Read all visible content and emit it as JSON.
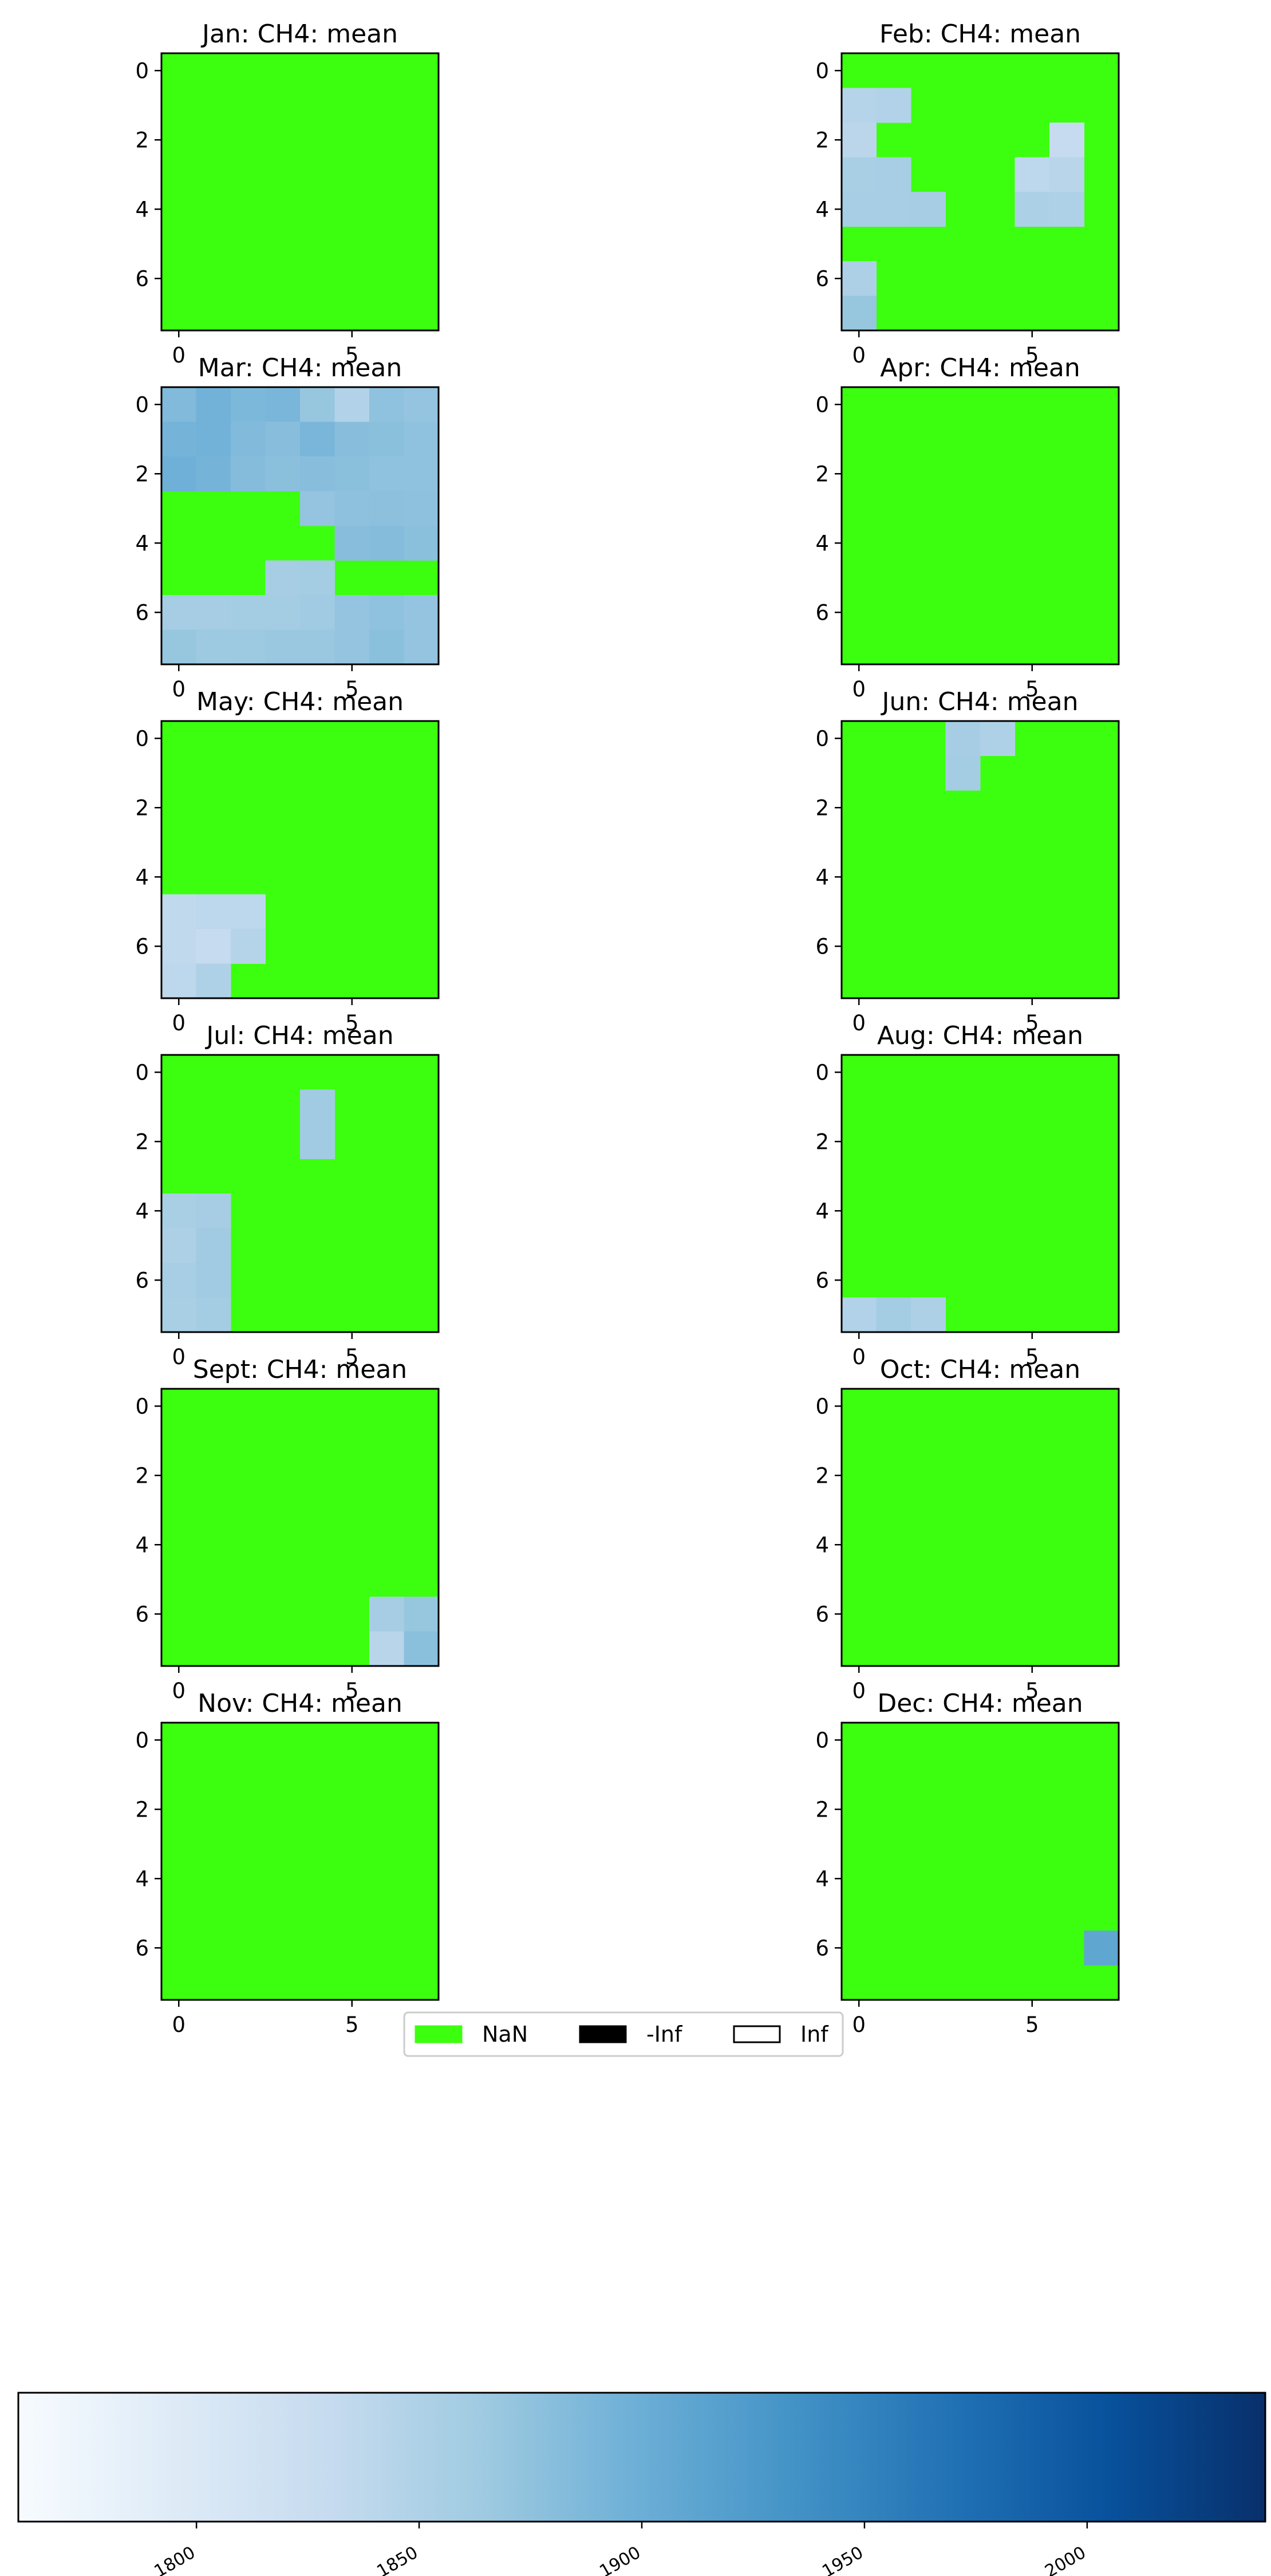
{
  "chart_data": {
    "type": "heatmap",
    "grid_size": 8,
    "missing_color": "#3cff0f",
    "colormap": "Blues",
    "colorbar": {
      "vmin": 1760,
      "vmax": 2040,
      "ticks": [
        1800,
        1850,
        1900,
        1950,
        2000
      ],
      "stops": [
        "#f7fbff",
        "#deebf7",
        "#c6dbef",
        "#9ecae1",
        "#6baed6",
        "#4292c6",
        "#2171b5",
        "#08519c",
        "#08306b"
      ]
    },
    "legend": {
      "placement": "lower-center",
      "entries": [
        {
          "label": "NaN",
          "color": "#3cff0f",
          "edge": "#3cff0f"
        },
        {
          "label": "-Inf",
          "color": "#000000",
          "edge": "#000000"
        },
        {
          "label": "Inf",
          "color": "#ffffff",
          "edge": "#000000"
        }
      ]
    },
    "y_ticks": [
      0,
      2,
      4,
      6
    ],
    "x_ticks": [
      0,
      5
    ],
    "panels": [
      {
        "title": "Jan: CH4: mean",
        "cells": []
      },
      {
        "title": "Feb: CH4: mean",
        "cells": [
          [
            1,
            0,
            1845
          ],
          [
            1,
            1,
            1848
          ],
          [
            2,
            0,
            1840
          ],
          [
            3,
            0,
            1855
          ],
          [
            3,
            1,
            1856
          ],
          [
            4,
            0,
            1857
          ],
          [
            4,
            1,
            1856
          ],
          [
            4,
            2,
            1858
          ],
          [
            6,
            0,
            1852
          ],
          [
            7,
            0,
            1870
          ],
          [
            2,
            6,
            1830
          ],
          [
            3,
            5,
            1838
          ],
          [
            3,
            6,
            1842
          ],
          [
            4,
            5,
            1853
          ],
          [
            4,
            6,
            1850
          ]
        ]
      },
      {
        "title": "Mar: CH4: mean",
        "cells": [
          [
            0,
            0,
            1885
          ],
          [
            0,
            1,
            1895
          ],
          [
            0,
            2,
            1888
          ],
          [
            0,
            3,
            1890
          ],
          [
            0,
            4,
            1870
          ],
          [
            0,
            5,
            1848
          ],
          [
            0,
            6,
            1875
          ],
          [
            0,
            7,
            1872
          ],
          [
            1,
            0,
            1893
          ],
          [
            1,
            1,
            1895
          ],
          [
            1,
            2,
            1885
          ],
          [
            1,
            3,
            1880
          ],
          [
            1,
            4,
            1890
          ],
          [
            1,
            5,
            1880
          ],
          [
            1,
            6,
            1878
          ],
          [
            1,
            7,
            1875
          ],
          [
            2,
            0,
            1898
          ],
          [
            2,
            1,
            1893
          ],
          [
            2,
            2,
            1882
          ],
          [
            2,
            3,
            1878
          ],
          [
            2,
            4,
            1880
          ],
          [
            2,
            5,
            1878
          ],
          [
            2,
            6,
            1875
          ],
          [
            2,
            7,
            1875
          ],
          [
            3,
            4,
            1872
          ],
          [
            3,
            5,
            1876
          ],
          [
            3,
            6,
            1877
          ],
          [
            3,
            7,
            1876
          ],
          [
            4,
            5,
            1880
          ],
          [
            4,
            6,
            1882
          ],
          [
            4,
            7,
            1878
          ],
          [
            5,
            3,
            1858
          ],
          [
            5,
            4,
            1860
          ],
          [
            6,
            0,
            1858
          ],
          [
            6,
            1,
            1858
          ],
          [
            6,
            2,
            1860
          ],
          [
            6,
            3,
            1860
          ],
          [
            6,
            4,
            1862
          ],
          [
            6,
            5,
            1872
          ],
          [
            6,
            6,
            1875
          ],
          [
            6,
            7,
            1872
          ],
          [
            7,
            0,
            1870
          ],
          [
            7,
            1,
            1865
          ],
          [
            7,
            2,
            1866
          ],
          [
            7,
            3,
            1868
          ],
          [
            7,
            4,
            1868
          ],
          [
            7,
            5,
            1872
          ],
          [
            7,
            6,
            1878
          ],
          [
            7,
            7,
            1872
          ]
        ]
      },
      {
        "title": "Apr: CH4: mean",
        "cells": []
      },
      {
        "title": "May: CH4: mean",
        "cells": [
          [
            5,
            0,
            1835
          ],
          [
            5,
            1,
            1838
          ],
          [
            5,
            2,
            1838
          ],
          [
            6,
            0,
            1835
          ],
          [
            6,
            1,
            1830
          ],
          [
            6,
            2,
            1845
          ],
          [
            7,
            0,
            1838
          ],
          [
            7,
            1,
            1850
          ]
        ]
      },
      {
        "title": "Jun: CH4: mean",
        "cells": [
          [
            0,
            3,
            1858
          ],
          [
            0,
            4,
            1850
          ],
          [
            1,
            3,
            1860
          ]
        ]
      },
      {
        "title": "Jul: CH4: mean",
        "cells": [
          [
            1,
            4,
            1862
          ],
          [
            2,
            4,
            1862
          ],
          [
            4,
            0,
            1855
          ],
          [
            4,
            1,
            1858
          ],
          [
            5,
            0,
            1852
          ],
          [
            5,
            1,
            1862
          ],
          [
            6,
            0,
            1856
          ],
          [
            6,
            1,
            1862
          ],
          [
            7,
            0,
            1855
          ],
          [
            7,
            1,
            1860
          ]
        ]
      },
      {
        "title": "Aug: CH4: mean",
        "cells": [
          [
            7,
            0,
            1848
          ],
          [
            7,
            1,
            1860
          ],
          [
            7,
            2,
            1852
          ]
        ]
      },
      {
        "title": "Sept: CH4: mean",
        "cells": [
          [
            6,
            6,
            1858
          ],
          [
            6,
            7,
            1870
          ],
          [
            7,
            6,
            1842
          ],
          [
            7,
            7,
            1878
          ]
        ]
      },
      {
        "title": "Oct: CH4: mean",
        "cells": []
      },
      {
        "title": "Nov: CH4: mean",
        "cells": []
      },
      {
        "title": "Dec: CH4: mean",
        "cells": [
          [
            6,
            7,
            1910
          ]
        ]
      }
    ]
  }
}
